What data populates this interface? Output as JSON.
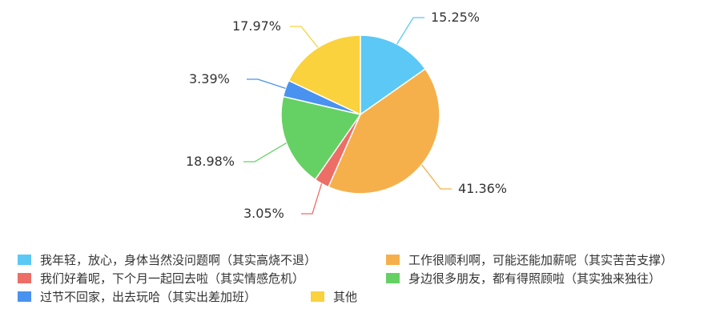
{
  "chart_data": {
    "type": "pie",
    "title": "",
    "slices": [
      {
        "label": "我年轻，放心，身体当然没问题啊（其实高烧不退）",
        "value": 15.25,
        "display": "15.25%",
        "color": "#5bc8f5"
      },
      {
        "label": "工作很顺利啊，可能还能加薪呢（其实苦苦支撑）",
        "value": 41.36,
        "display": "41.36%",
        "color": "#f5b04b"
      },
      {
        "label": "我们好着呢，下个月一起回去啦（其实情感危机）",
        "value": 3.05,
        "display": "3.05%",
        "color": "#ec6e66"
      },
      {
        "label": "身边很多朋友，都有得照顾啦（其实独来独往）",
        "value": 18.98,
        "display": "18.98%",
        "color": "#65d164"
      },
      {
        "label": "过节不回家，出去玩哈（其实出差加班）",
        "value": 3.39,
        "display": "3.39%",
        "color": "#4a92ef"
      },
      {
        "label": "其他",
        "value": 17.97,
        "display": "17.97%",
        "color": "#f9d23d"
      }
    ],
    "legend_position": "bottom"
  }
}
